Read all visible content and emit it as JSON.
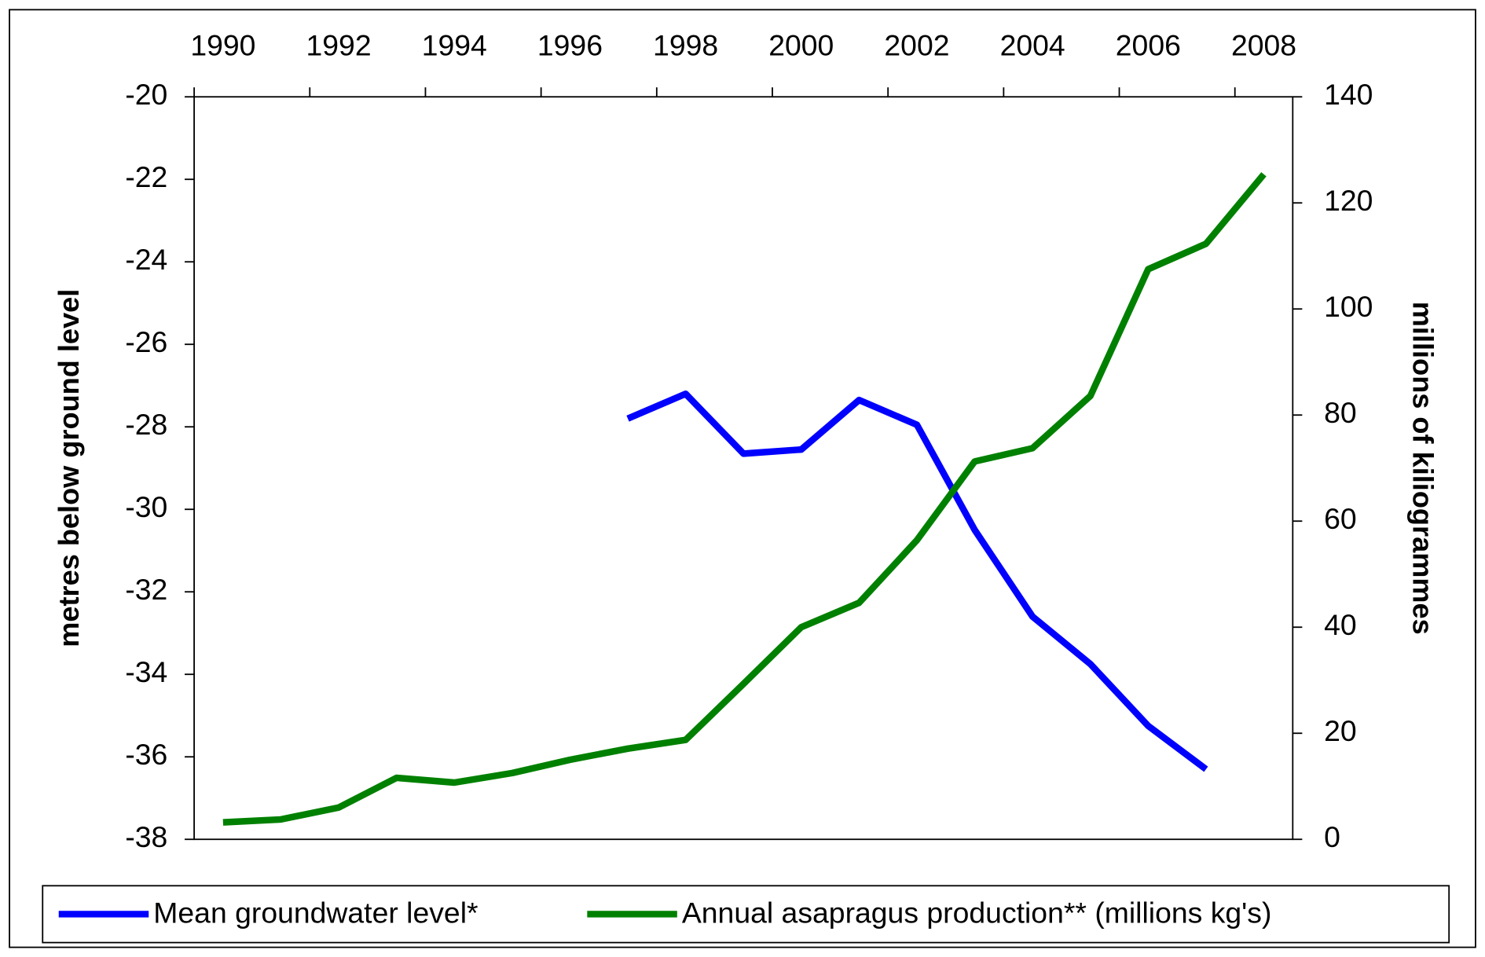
{
  "chart_data": {
    "type": "line",
    "categories": [
      "1990",
      null,
      "1992",
      null,
      "1994",
      null,
      "1996",
      null,
      "1998",
      null,
      "2000",
      null,
      "2002",
      null,
      "2004",
      null,
      "2006",
      null,
      "2008"
    ],
    "ylabel": "metres below ground level",
    "y2label": "millions of kiliogrammes",
    "ylim": [
      -38,
      -20
    ],
    "yticks": [
      -38,
      -36,
      -34,
      -32,
      -30,
      -28,
      -26,
      -24,
      -22,
      -20
    ],
    "y2lim": [
      0,
      140
    ],
    "y2ticks": [
      0,
      20,
      40,
      60,
      80,
      100,
      120,
      140
    ],
    "legend": "bottom",
    "series": [
      {
        "name": "Mean groundwater level*",
        "color": "#0000ff",
        "values": [
          null,
          null,
          null,
          null,
          null,
          null,
          null,
          -27.8,
          -27.2,
          -28.65,
          -28.55,
          -27.35,
          -27.95,
          -30.5,
          -32.6,
          -33.75,
          -35.25,
          -36.3,
          null
        ]
      },
      {
        "name": "Annual asapragus production** (millions kg's)",
        "color": "#008000",
        "axis": "y2",
        "values": [
          3.2,
          3.75,
          6,
          11.6,
          10.7,
          12.5,
          15,
          17.1,
          18.75,
          29.3,
          40,
          44.6,
          56.4,
          71.25,
          73.75,
          83.6,
          107.5,
          112.3,
          125.4
        ]
      }
    ]
  }
}
